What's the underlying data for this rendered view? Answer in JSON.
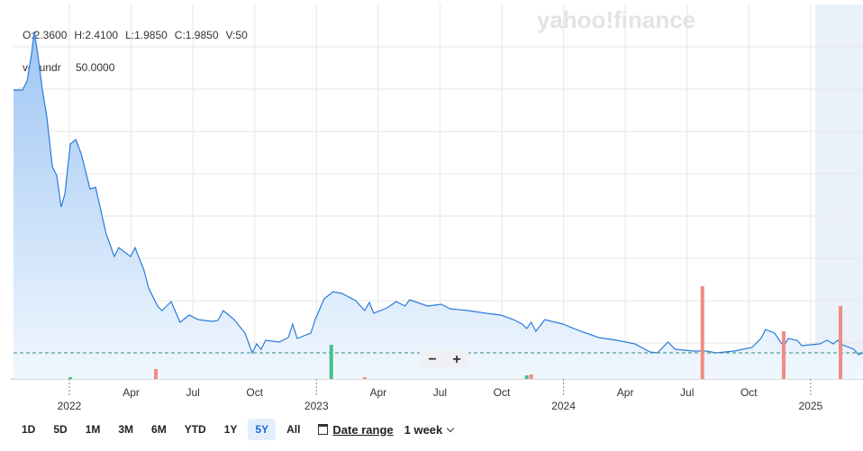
{
  "chart_data": {
    "type": "line",
    "watermark": "yahoo!finance",
    "ohlc": [
      "O:2.3600",
      "H:2.4100",
      "L:1.9850",
      "C:1.9850",
      "V:50"
    ],
    "indicator": {
      "name": "vol undr",
      "value": "50.0000"
    },
    "xlim": [
      2021.774,
      2025.212
    ],
    "ylim": [
      0,
      41.6
    ],
    "y2lim": [
      0,
      416
    ],
    "ygrid": [
      4.0,
      8.7,
      13.4,
      18.1,
      22.8,
      27.5,
      32.2,
      36.9
    ],
    "xticks": [
      {
        "value": 2022,
        "label": "2022"
      },
      {
        "value": 2022.25,
        "label": "Apr"
      },
      {
        "value": 2022.5,
        "label": "Jul"
      },
      {
        "value": 2022.75,
        "label": "Oct"
      },
      {
        "value": 2023,
        "label": "2023"
      },
      {
        "value": 2023.25,
        "label": "Apr"
      },
      {
        "value": 2023.5,
        "label": "Jul"
      },
      {
        "value": 2023.75,
        "label": "Oct"
      },
      {
        "value": 2024,
        "label": "2024"
      },
      {
        "value": 2024.25,
        "label": "Apr"
      },
      {
        "value": 2024.5,
        "label": "Jul"
      },
      {
        "value": 2024.75,
        "label": "Oct"
      },
      {
        "value": 2025,
        "label": "2025"
      }
    ],
    "reference_value": 2.9,
    "price": {
      "color": "#2b7bd8",
      "x": [
        2021.774,
        2021.811,
        2021.829,
        2021.847,
        2021.858,
        2021.872,
        2021.891,
        2021.909,
        2021.931,
        2021.949,
        2021.967,
        2021.982,
        2022.004,
        2022.026,
        2022.047,
        2022.084,
        2022.106,
        2022.149,
        2022.182,
        2022.2,
        2022.248,
        2022.266,
        2022.302,
        2022.321,
        2022.357,
        2022.375,
        2022.412,
        2022.448,
        2022.485,
        2022.521,
        2022.576,
        2022.601,
        2022.623,
        2022.667,
        2022.711,
        2022.74,
        2022.758,
        2022.776,
        2022.795,
        2022.849,
        2022.886,
        2022.904,
        2022.922,
        2022.977,
        2022.995,
        2023.031,
        2023.068,
        2023.104,
        2023.159,
        2023.195,
        2023.214,
        2023.232,
        2023.286,
        2023.323,
        2023.359,
        2023.377,
        2023.45,
        2023.505,
        2023.541,
        2023.614,
        2023.687,
        2023.746,
        2023.797,
        2023.833,
        2023.851,
        2023.869,
        2023.888,
        2023.924,
        2023.997,
        2024.07,
        2024.143,
        2024.216,
        2024.288,
        2024.35,
        2024.38,
        2024.423,
        2024.452,
        2024.525,
        2024.58,
        2024.617,
        2024.69,
        2024.763,
        2024.799,
        2024.818,
        2024.854,
        2024.891,
        2024.909,
        2024.945,
        2024.964,
        2025.037,
        2025.066,
        2025.092,
        2025.11,
        2025.128,
        2025.175,
        2025.194,
        2025.212
      ],
      "values": [
        32.1,
        32.1,
        33.1,
        36.1,
        38.6,
        36.1,
        32.1,
        29.1,
        23.6,
        22.6,
        19.1,
        20.6,
        26.1,
        26.6,
        25.1,
        21.1,
        21.3,
        16.1,
        13.6,
        14.6,
        13.6,
        14.6,
        12.1,
        10.1,
        8.1,
        7.6,
        8.6,
        6.3,
        7.1,
        6.6,
        6.4,
        6.5,
        7.6,
        6.6,
        5.1,
        2.9,
        3.9,
        3.3,
        4.3,
        4.1,
        4.6,
        6.1,
        4.5,
        5.1,
        6.6,
        8.9,
        9.7,
        9.5,
        8.7,
        7.6,
        8.5,
        7.3,
        7.9,
        8.6,
        8.1,
        8.8,
        8.1,
        8.3,
        7.8,
        7.6,
        7.3,
        7.1,
        6.6,
        6.1,
        5.6,
        6.3,
        5.3,
        6.6,
        6.1,
        5.3,
        4.6,
        4.3,
        3.9,
        3.0,
        2.9,
        4.1,
        3.3,
        3.1,
        3.1,
        2.9,
        3.1,
        3.5,
        4.5,
        5.5,
        5.1,
        3.6,
        4.5,
        4.3,
        3.7,
        3.9,
        4.3,
        3.9,
        4.3,
        3.8,
        3.3,
        2.7,
        2.9
      ]
    },
    "volume": {
      "x": [
        2022.004,
        2022.35,
        2023.06,
        2023.195,
        2023.851,
        2023.869,
        2024.562,
        2024.891,
        2025.121
      ],
      "values": [
        2,
        11,
        38,
        2,
        4,
        5,
        103,
        53,
        81
      ],
      "colors": [
        "#45c089",
        "#f08c82",
        "#45c089",
        "#f08c82",
        "#45c089",
        "#f08c82",
        "#f08c82",
        "#f08c82",
        "#f08c82"
      ]
    },
    "zoom": [
      "−",
      "+"
    ],
    "ranges": [
      "1D",
      "5D",
      "1M",
      "3M",
      "6M",
      "YTD",
      "1Y",
      "5Y",
      "All"
    ],
    "selected_range_index": 7,
    "date_range": "Date range",
    "interval": "1 week"
  }
}
